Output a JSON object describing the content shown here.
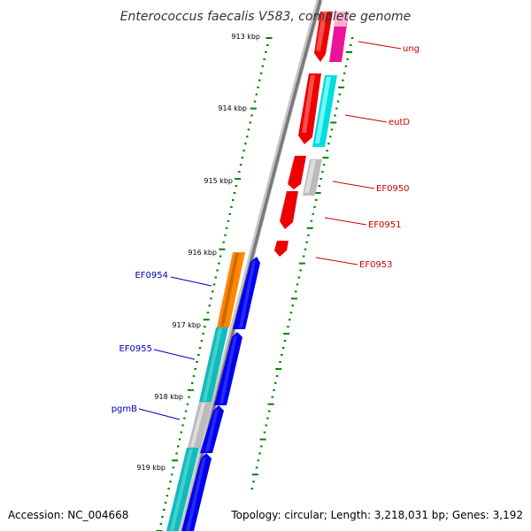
{
  "title": "Enterococcus faecalis V583, complete genome",
  "footer": {
    "accession": "Accession: NC_004668",
    "info": "Topology: circular; Length: 3,218,031 bp; Genes: 3,192"
  },
  "ruler": {
    "labels": [
      "913 kbp",
      "914 kbp",
      "915 kbp",
      "916 kbp",
      "917 kbp",
      "918 kbp",
      "919 kbp"
    ]
  },
  "gene_labels": {
    "right": [
      "ung",
      "eutD",
      "EF0950",
      "EF0951",
      "EF0953"
    ],
    "left": [
      "EF0954",
      "EF0955",
      "pgmB"
    ]
  },
  "colors": {
    "backbone": "#808080",
    "tick": "#008000",
    "gene_red": "#ee0000",
    "gene_pink": "#ff66aa",
    "gene_magenta": "#ee1199",
    "gene_cyan": "#00dddd",
    "gene_gray": "#bbbbbb",
    "gene_orange": "#ff8800",
    "gene_teal": "#11bbbb",
    "gene_blue": "#0000ee",
    "label_red": "#cc0000",
    "label_blue": "#0000bb"
  }
}
